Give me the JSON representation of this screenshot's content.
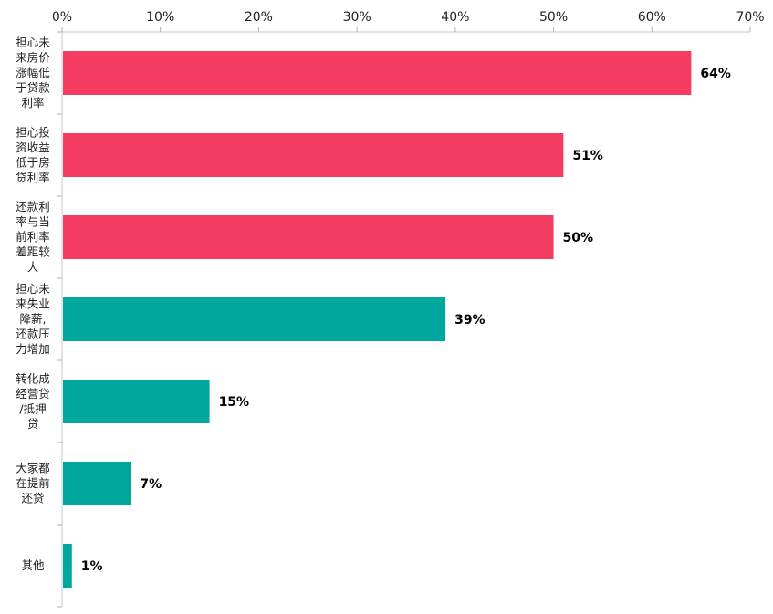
{
  "chart_data": {
    "type": "bar",
    "orientation": "horizontal",
    "categories": [
      [
        "担心未",
        "来房价",
        "涨幅低",
        "于贷款",
        "利率"
      ],
      [
        "担心投",
        "资收益",
        "低于房",
        "贷利率"
      ],
      [
        "还款利",
        "率与当",
        "前利率",
        "差距较",
        "大"
      ],
      [
        "担心未",
        "来失业",
        "降薪,",
        "还款压",
        "力增加"
      ],
      [
        "转化成",
        "经营贷",
        "/抵押",
        "贷"
      ],
      [
        "大家都",
        "在提前",
        "还贷"
      ],
      [
        "其他"
      ]
    ],
    "values": [
      64,
      51,
      50,
      39,
      15,
      7,
      1
    ],
    "data_labels": [
      "64%",
      "51%",
      "50%",
      "39%",
      "15%",
      "7%",
      "1%"
    ],
    "bar_colors": [
      "#f53d61",
      "#f53d61",
      "#f53d61",
      "#00a79d",
      "#00a79d",
      "#00a79d",
      "#00a79d"
    ],
    "xlim": [
      0,
      70
    ],
    "x_ticks": [
      0,
      10,
      20,
      30,
      40,
      50,
      60,
      70
    ],
    "x_tick_labels": [
      "0%",
      "10%",
      "20%",
      "30%",
      "40%",
      "50%",
      "60%",
      "70%"
    ],
    "x_axis_position": "top",
    "title": "",
    "xlabel": "",
    "ylabel": "",
    "grid": false,
    "legend": "none"
  }
}
